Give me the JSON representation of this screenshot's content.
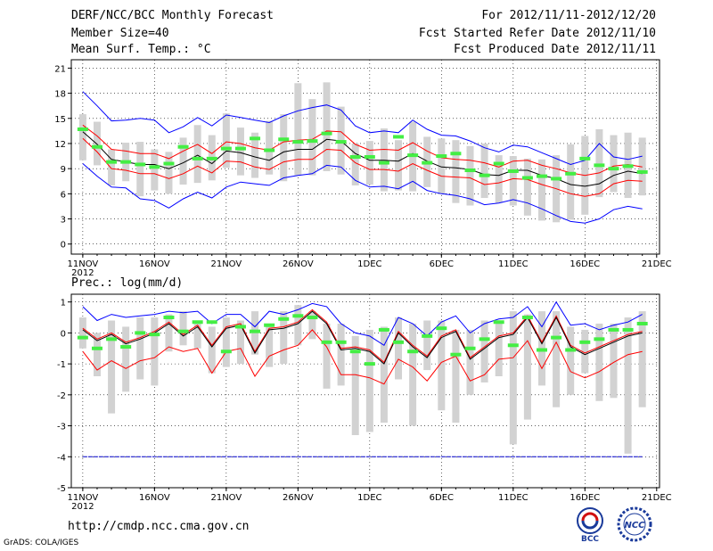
{
  "header": {
    "title": "DERF/NCC/BCC Monthly Forecast",
    "member": "Member Size=40",
    "variable": "Mean Surf. Temp.: °C",
    "period": "For 2012/11/11-2012/12/20",
    "started": "Fcst Started Refer Date 2012/11/10",
    "produced": "Fcst Produced Date 2012/11/11"
  },
  "footer": {
    "url": "http://cmdp.ncc.cma.gov.cn",
    "grads": "GrADS: COLA/IGES"
  },
  "logos": {
    "bcc_text": "BCC",
    "ncc_text": "NCC"
  },
  "chart_data": [
    {
      "type": "line",
      "title": "Mean Surf. Temp.: °C",
      "x_tick_labels": [
        "11NOV",
        "16NOV",
        "21NOV",
        "26NOV",
        "1DEC",
        "6DEC",
        "11DEC",
        "16DEC",
        "21DEC"
      ],
      "x_sub_label": "2012",
      "yticks": [
        0,
        3,
        6,
        9,
        12,
        15,
        18,
        21
      ],
      "ylim": [
        -1.2,
        22
      ],
      "days": 40,
      "series": [
        {
          "name": "max",
          "color": "#0000ff",
          "values": [
            18.2,
            16.5,
            14.7,
            14.8,
            15.0,
            14.8,
            13.3,
            14.0,
            15.1,
            14.1,
            15.4,
            15.1,
            14.8,
            14.5,
            15.3,
            15.9,
            16.3,
            16.6,
            16.0,
            14.1,
            13.3,
            13.5,
            13.3,
            14.8,
            13.7,
            13.0,
            12.9,
            12.3,
            11.5,
            11.0,
            11.8,
            11.6,
            10.9,
            10.2,
            9.5,
            10.0,
            12.0,
            10.4,
            10.1,
            10.5
          ]
        },
        {
          "name": "upper",
          "color": "#ff0000",
          "values": [
            14.2,
            12.9,
            11.3,
            11.1,
            10.8,
            10.8,
            10.2,
            11.1,
            11.9,
            10.8,
            12.2,
            12.0,
            11.5,
            11.2,
            12.2,
            12.4,
            12.5,
            13.5,
            13.4,
            11.9,
            11.2,
            11.3,
            11.2,
            12.1,
            11.1,
            10.3,
            10.1,
            10.0,
            9.7,
            9.2,
            9.9,
            10.0,
            9.4,
            9.0,
            8.5,
            8.2,
            8.5,
            9.3,
            9.5,
            9.2
          ]
        },
        {
          "name": "mean",
          "color": "#000000",
          "values": [
            13.4,
            11.9,
            10.1,
            9.8,
            9.5,
            9.5,
            9.0,
            9.7,
            10.6,
            9.6,
            11.1,
            10.9,
            10.4,
            10.0,
            11.0,
            11.3,
            11.3,
            12.5,
            12.3,
            10.8,
            10.0,
            10.0,
            9.9,
            10.8,
            9.9,
            9.2,
            9.1,
            8.9,
            8.3,
            8.2,
            8.8,
            8.8,
            8.2,
            7.8,
            7.1,
            6.9,
            7.2,
            8.2,
            8.7,
            8.4
          ]
        },
        {
          "name": "lower",
          "color": "#ff0000",
          "values": [
            12.6,
            11.0,
            9.0,
            8.8,
            8.4,
            8.4,
            7.8,
            8.4,
            9.3,
            8.5,
            9.9,
            9.8,
            9.2,
            8.9,
            9.8,
            10.1,
            10.1,
            11.3,
            11.2,
            9.7,
            8.9,
            8.9,
            8.7,
            9.6,
            8.8,
            8.1,
            8.0,
            7.9,
            7.1,
            7.3,
            7.8,
            7.7,
            7.1,
            6.6,
            6.0,
            5.7,
            6.0,
            7.2,
            7.6,
            7.5
          ]
        },
        {
          "name": "min",
          "color": "#0000ff",
          "values": [
            9.6,
            8.1,
            6.8,
            6.7,
            5.4,
            5.2,
            4.3,
            5.4,
            6.2,
            5.5,
            6.8,
            7.4,
            7.2,
            7.0,
            7.9,
            8.2,
            8.4,
            9.4,
            9.2,
            7.6,
            6.8,
            6.9,
            6.6,
            7.5,
            6.4,
            6.0,
            5.8,
            5.4,
            4.7,
            4.9,
            5.3,
            4.9,
            4.2,
            3.4,
            2.7,
            2.5,
            3.0,
            4.1,
            4.5,
            4.2
          ]
        }
      ],
      "bars": [
        [
          10.0,
          15.5
        ],
        [
          9.4,
          14.6
        ],
        [
          7.0,
          11.3
        ],
        [
          7.5,
          12.1
        ],
        [
          5.7,
          12.2
        ],
        [
          6.4,
          11.3
        ],
        [
          6.0,
          11.0
        ],
        [
          7.1,
          12.7
        ],
        [
          7.3,
          14.2
        ],
        [
          7.6,
          13.0
        ],
        [
          9.1,
          15.6
        ],
        [
          8.2,
          13.9
        ],
        [
          7.9,
          13.3
        ],
        [
          8.3,
          14.7
        ],
        [
          7.5,
          15.5
        ],
        [
          8.2,
          19.2
        ],
        [
          8.2,
          17.3
        ],
        [
          8.7,
          19.3
        ],
        [
          8.3,
          16.4
        ],
        [
          7.0,
          12.0
        ],
        [
          7.1,
          12.3
        ],
        [
          6.3,
          13.8
        ],
        [
          6.4,
          12.4
        ],
        [
          6.3,
          14.6
        ],
        [
          6.8,
          12.8
        ],
        [
          6.0,
          12.6
        ],
        [
          4.9,
          12.4
        ],
        [
          4.6,
          11.7
        ],
        [
          5.5,
          12.0
        ],
        [
          4.9,
          10.6
        ],
        [
          4.6,
          10.5
        ],
        [
          3.4,
          10.2
        ],
        [
          2.8,
          10.1
        ],
        [
          2.6,
          10.6
        ],
        [
          2.9,
          11.9
        ],
        [
          3.5,
          12.9
        ],
        [
          5.6,
          13.7
        ],
        [
          6.2,
          13.0
        ],
        [
          5.5,
          13.3
        ],
        [
          5.8,
          12.7
        ]
      ],
      "green_marks": [
        13.7,
        11.6,
        9.8,
        9.8,
        9.5,
        9.2,
        9.6,
        11.6,
        10.2,
        10.2,
        11.4,
        11.4,
        12.6,
        11.2,
        12.5,
        12.2,
        12.3,
        13.2,
        12.2,
        10.4,
        10.4,
        9.7,
        12.8,
        10.6,
        9.7,
        10.5,
        10.8,
        8.8,
        8.2,
        9.6,
        8.7,
        7.9,
        8.1,
        7.8,
        8.4,
        10.2,
        9.4,
        9.0,
        9.3,
        8.6
      ]
    },
    {
      "type": "line",
      "title": "Prec.: log(mm/d)",
      "x_tick_labels": [
        "11NOV",
        "16NOV",
        "21NOV",
        "26NOV",
        "1DEC",
        "6DEC",
        "11DEC",
        "16DEC",
        "21DEC"
      ],
      "x_sub_label": "2012",
      "yticks": [
        -5,
        -4,
        -3,
        -2,
        -1,
        0,
        1
      ],
      "ylim": [
        -5,
        1.25
      ],
      "days": 40,
      "baseline": -4,
      "series": [
        {
          "name": "max",
          "color": "#0000ff",
          "values": [
            0.85,
            0.4,
            0.6,
            0.5,
            0.55,
            0.6,
            0.7,
            0.65,
            0.7,
            0.3,
            0.6,
            0.6,
            0.2,
            0.7,
            0.6,
            0.75,
            0.95,
            0.85,
            0.3,
            0.0,
            -0.1,
            -0.4,
            0.5,
            0.3,
            -0.1,
            0.35,
            0.55,
            0.0,
            0.3,
            0.45,
            0.5,
            0.85,
            0.2,
            1.0,
            0.25,
            0.3,
            0.1,
            0.25,
            0.35,
            0.6
          ]
        },
        {
          "name": "upper",
          "color": "#ff0000",
          "values": [
            0.15,
            -0.2,
            0.0,
            -0.3,
            -0.15,
            0.05,
            0.35,
            -0.05,
            0.25,
            -0.4,
            0.2,
            0.3,
            -0.6,
            0.15,
            0.2,
            0.35,
            0.75,
            0.35,
            -0.5,
            -0.45,
            -0.55,
            -0.95,
            0.05,
            -0.4,
            -0.75,
            -0.1,
            0.1,
            -0.8,
            -0.45,
            -0.1,
            0.0,
            0.55,
            -0.3,
            0.55,
            -0.4,
            -0.65,
            -0.45,
            -0.25,
            -0.05,
            0.05
          ]
        },
        {
          "name": "mean",
          "color": "#000000",
          "values": [
            0.1,
            -0.25,
            -0.05,
            -0.35,
            -0.2,
            0.0,
            0.3,
            -0.1,
            0.2,
            -0.45,
            0.15,
            0.25,
            -0.65,
            0.1,
            0.15,
            0.3,
            0.7,
            0.3,
            -0.55,
            -0.5,
            -0.6,
            -1.0,
            0.0,
            -0.45,
            -0.8,
            -0.15,
            0.05,
            -0.85,
            -0.5,
            -0.15,
            -0.05,
            0.5,
            -0.35,
            0.5,
            -0.45,
            -0.7,
            -0.5,
            -0.3,
            -0.1,
            0.0
          ]
        },
        {
          "name": "lower",
          "color": "#ff0000",
          "values": [
            -0.6,
            -1.2,
            -0.9,
            -1.15,
            -0.9,
            -0.8,
            -0.45,
            -0.6,
            -0.5,
            -1.3,
            -0.6,
            -0.5,
            -1.4,
            -0.75,
            -0.55,
            -0.4,
            0.1,
            -0.45,
            -1.35,
            -1.35,
            -1.45,
            -1.65,
            -0.85,
            -1.1,
            -1.55,
            -0.95,
            -0.75,
            -1.55,
            -1.35,
            -0.85,
            -0.8,
            -0.25,
            -1.15,
            -0.3,
            -1.25,
            -1.45,
            -1.25,
            -0.95,
            -0.7,
            -0.6
          ]
        },
        {
          "name": "min",
          "color": "#0000ff",
          "values": [
            -3.9,
            -3.9,
            -3.9,
            -3.9,
            -3.9,
            -3.9,
            -3.9,
            -3.9,
            -3.9,
            -3.9,
            -3.9,
            -3.9,
            -3.9,
            -3.9,
            -3.9,
            -3.9,
            -3.9,
            -3.9,
            -3.9,
            -3.9,
            -3.9,
            -3.9,
            -3.9,
            -3.9,
            -3.9,
            -3.9,
            -3.9,
            -3.9,
            -3.9,
            -3.9,
            -3.9,
            -3.9,
            -3.9,
            -3.9,
            -3.9,
            -3.9,
            -3.9,
            -3.9,
            -3.9,
            -3.9
          ]
        }
      ],
      "bars": [
        [
          -0.5,
          0.5
        ],
        [
          -1.4,
          0.0
        ],
        [
          -2.6,
          0.4
        ],
        [
          -1.9,
          0.2
        ],
        [
          -1.5,
          0.5
        ],
        [
          -1.7,
          0.5
        ],
        [
          -0.6,
          0.6
        ],
        [
          -0.4,
          0.7
        ],
        [
          -0.5,
          0.4
        ],
        [
          -1.3,
          0.2
        ],
        [
          -1.1,
          0.5
        ],
        [
          -1.0,
          0.4
        ],
        [
          -0.7,
          0.7
        ],
        [
          -1.1,
          0.2
        ],
        [
          -1.0,
          0.7
        ],
        [
          -0.4,
          0.9
        ],
        [
          -0.2,
          0.7
        ],
        [
          -1.8,
          0.3
        ],
        [
          -1.7,
          0.3
        ],
        [
          -3.3,
          -0.1
        ],
        [
          -3.2,
          0.1
        ],
        [
          -2.9,
          0.2
        ],
        [
          -1.5,
          0.5
        ],
        [
          -3.0,
          0.3
        ],
        [
          -1.2,
          0.4
        ],
        [
          -2.5,
          0.4
        ],
        [
          -2.9,
          0.1
        ],
        [
          -2.0,
          0.1
        ],
        [
          -1.6,
          0.4
        ],
        [
          -1.4,
          0.3
        ],
        [
          -3.6,
          0.7
        ],
        [
          -2.8,
          0.6
        ],
        [
          -1.7,
          0.7
        ],
        [
          -2.4,
          0.7
        ],
        [
          -2.0,
          0.2
        ],
        [
          -1.3,
          0.1
        ],
        [
          -2.2,
          0.3
        ],
        [
          -2.1,
          0.3
        ],
        [
          -3.9,
          0.5
        ],
        [
          -2.4,
          0.7
        ]
      ],
      "green_marks": [
        -0.15,
        -0.5,
        -0.2,
        -0.45,
        0.0,
        -0.05,
        0.5,
        0.05,
        0.35,
        0.35,
        -0.6,
        0.2,
        0.05,
        0.25,
        0.45,
        0.55,
        0.5,
        -0.3,
        -0.3,
        -0.6,
        -1.0,
        0.1,
        -0.3,
        -0.6,
        -0.1,
        0.15,
        -0.7,
        -0.5,
        -0.2,
        0.35,
        -0.4,
        0.5,
        -0.55,
        -0.15,
        -0.55,
        -0.3,
        -0.2,
        0.1,
        0.1,
        0.3
      ]
    }
  ]
}
